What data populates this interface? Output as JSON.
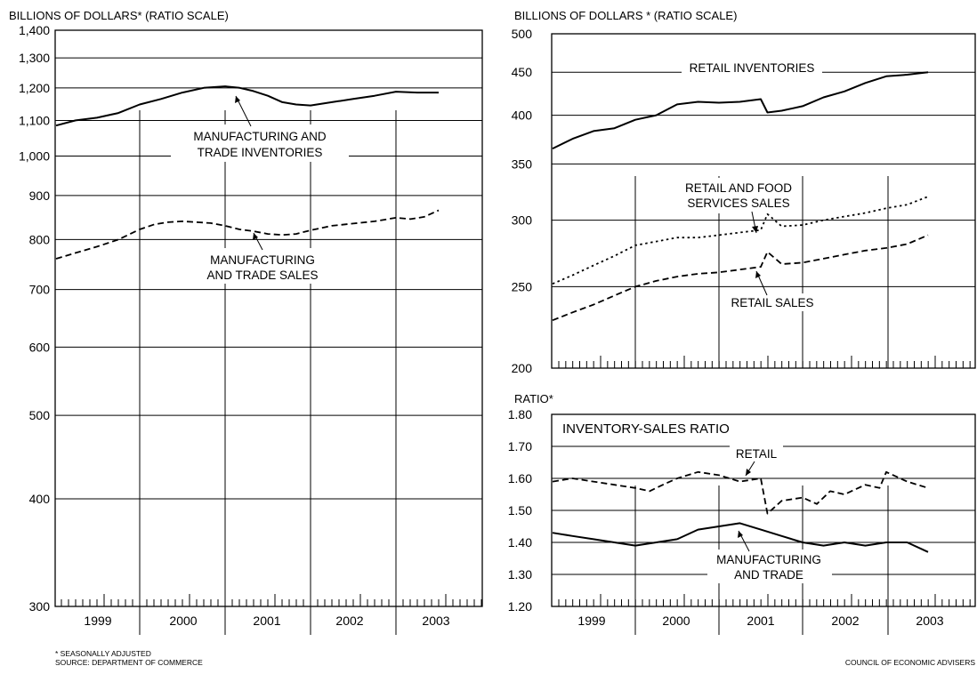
{
  "chart_data": [
    {
      "type": "line",
      "title": "",
      "ylabel": "BILLIONS OF DOLLARS* (RATIO SCALE)",
      "yscale": "log",
      "ylim": [
        300,
        1400
      ],
      "yticks": [
        300,
        400,
        500,
        600,
        700,
        800,
        900,
        1000,
        1100,
        1200,
        1300,
        1400
      ],
      "ytick_labels": [
        "300",
        "400",
        "500",
        "600",
        "700",
        "800",
        "900",
        "1,000",
        "1,100",
        "1,200",
        "1,300",
        "1,400"
      ],
      "x_years": [
        "1999",
        "2000",
        "2001",
        "2002",
        "2003"
      ],
      "xlim": [
        1999.0,
        2004.0
      ],
      "grid": true,
      "annotations": [
        {
          "lines": [
            "MANUFACTURING AND",
            "TRADE INVENTORIES"
          ],
          "series": "MANUFACTURING AND TRADE INVENTORIES"
        },
        {
          "lines": [
            "MANUFACTURING",
            "AND TRADE SALES"
          ],
          "series": "MANUFACTURING AND TRADE SALES"
        }
      ],
      "series": [
        {
          "name": "MANUFACTURING AND TRADE INVENTORIES",
          "style": "solid",
          "x": [
            1999.0,
            1999.25,
            1999.5,
            1999.75,
            2000.0,
            2000.25,
            2000.5,
            2000.75,
            2001.0,
            2001.17,
            2001.33,
            2001.5,
            2001.67,
            2001.83,
            2002.0,
            2002.25,
            2002.5,
            2002.75,
            2003.0,
            2003.25,
            2003.5
          ],
          "y": [
            1085,
            1100,
            1108,
            1122,
            1148,
            1165,
            1185,
            1200,
            1205,
            1200,
            1190,
            1175,
            1155,
            1148,
            1145,
            1155,
            1165,
            1175,
            1188,
            1185,
            1185
          ]
        },
        {
          "name": "MANUFACTURING AND TRADE SALES",
          "style": "dashed",
          "x": [
            1999.0,
            1999.25,
            1999.5,
            1999.75,
            2000.0,
            2000.17,
            2000.33,
            2000.5,
            2000.67,
            2000.83,
            2001.0,
            2001.17,
            2001.33,
            2001.5,
            2001.67,
            2001.83,
            2002.0,
            2002.25,
            2002.5,
            2002.75,
            2003.0,
            2003.17,
            2003.33,
            2003.5
          ],
          "y": [
            760,
            772,
            785,
            800,
            822,
            833,
            838,
            840,
            838,
            836,
            830,
            822,
            818,
            812,
            810,
            812,
            820,
            830,
            835,
            840,
            848,
            845,
            850,
            865
          ]
        }
      ]
    },
    {
      "type": "line",
      "title": "",
      "ylabel": "BILLIONS OF DOLLARS * (RATIO SCALE)",
      "yscale": "log",
      "ylim": [
        200,
        500
      ],
      "yticks": [
        200,
        250,
        300,
        350,
        400,
        450,
        500
      ],
      "ytick_labels": [
        "200",
        "250",
        "300",
        "350",
        "400",
        "450",
        "500"
      ],
      "xlim": [
        1999.0,
        2004.0
      ],
      "grid": true,
      "annotations": [
        {
          "lines": [
            "RETAIL INVENTORIES"
          ],
          "series": "RETAIL INVENTORIES"
        },
        {
          "lines": [
            "RETAIL AND FOOD",
            "SERVICES SALES"
          ],
          "series": "RETAIL AND FOOD SERVICES SALES"
        },
        {
          "lines": [
            "RETAIL SALES"
          ],
          "series": "RETAIL SALES"
        }
      ],
      "series": [
        {
          "name": "RETAIL INVENTORIES",
          "style": "solid",
          "x": [
            1999.0,
            1999.25,
            1999.5,
            1999.75,
            2000.0,
            2000.25,
            2000.5,
            2000.75,
            2001.0,
            2001.25,
            2001.5,
            2001.58,
            2001.75,
            2002.0,
            2002.25,
            2002.5,
            2002.75,
            2003.0,
            2003.25,
            2003.5
          ],
          "y": [
            365,
            375,
            383,
            386,
            395,
            400,
            412,
            415,
            414,
            415,
            418,
            403,
            405,
            410,
            420,
            427,
            437,
            445,
            447,
            450
          ]
        },
        {
          "name": "RETAIL AND FOOD SERVICES SALES",
          "style": "dotted",
          "x": [
            1999.0,
            1999.25,
            1999.5,
            1999.75,
            2000.0,
            2000.25,
            2000.5,
            2000.75,
            2001.0,
            2001.25,
            2001.5,
            2001.58,
            2001.75,
            2002.0,
            2002.25,
            2002.5,
            2002.75,
            2003.0,
            2003.25,
            2003.5
          ],
          "y": [
            252,
            258,
            265,
            272,
            280,
            283,
            286,
            286,
            288,
            290,
            292,
            305,
            295,
            296,
            300,
            303,
            306,
            310,
            313,
            320
          ]
        },
        {
          "name": "RETAIL SALES",
          "style": "dashed",
          "x": [
            1999.0,
            1999.25,
            1999.5,
            1999.75,
            2000.0,
            2000.25,
            2000.5,
            2000.75,
            2001.0,
            2001.25,
            2001.5,
            2001.58,
            2001.75,
            2002.0,
            2002.25,
            2002.5,
            2002.75,
            2003.0,
            2003.25,
            2003.5
          ],
          "y": [
            228,
            233,
            238,
            244,
            250,
            254,
            257,
            259,
            260,
            262,
            264,
            275,
            266,
            267,
            270,
            273,
            276,
            278,
            281,
            288
          ]
        }
      ]
    },
    {
      "type": "line",
      "title": "INVENTORY-SALES RATIO",
      "ylabel": "RATIO*",
      "yscale": "linear",
      "ylim": [
        1.2,
        1.8
      ],
      "yticks": [
        1.2,
        1.3,
        1.4,
        1.5,
        1.6,
        1.7,
        1.8
      ],
      "ytick_labels": [
        "1.20",
        "1.30",
        "1.40",
        "1.50",
        "1.60",
        "1.70",
        "1.80"
      ],
      "x_years": [
        "1999",
        "2000",
        "2001",
        "2002",
        "2003"
      ],
      "xlim": [
        1999.0,
        2004.0
      ],
      "grid": true,
      "annotations": [
        {
          "lines": [
            "RETAIL"
          ],
          "series": "RETAIL"
        },
        {
          "lines": [
            "MANUFACTURING",
            "AND TRADE"
          ],
          "series": "MANUFACTURING AND TRADE"
        }
      ],
      "series": [
        {
          "name": "RETAIL",
          "style": "dashed",
          "x": [
            1999.0,
            1999.25,
            1999.5,
            1999.75,
            2000.0,
            2000.17,
            2000.33,
            2000.5,
            2000.75,
            2001.0,
            2001.25,
            2001.5,
            2001.58,
            2001.75,
            2002.0,
            2002.17,
            2002.33,
            2002.5,
            2002.75,
            2002.92,
            2003.0,
            2003.25,
            2003.5
          ],
          "y": [
            1.59,
            1.6,
            1.59,
            1.58,
            1.57,
            1.56,
            1.58,
            1.6,
            1.62,
            1.61,
            1.59,
            1.6,
            1.49,
            1.53,
            1.54,
            1.52,
            1.56,
            1.55,
            1.58,
            1.57,
            1.62,
            1.59,
            1.57
          ]
        },
        {
          "name": "MANUFACTURING AND TRADE",
          "style": "solid",
          "x": [
            1999.0,
            1999.25,
            1999.5,
            1999.75,
            2000.0,
            2000.25,
            2000.5,
            2000.75,
            2001.0,
            2001.25,
            2001.5,
            2001.75,
            2002.0,
            2002.25,
            2002.5,
            2002.75,
            2003.0,
            2003.25,
            2003.5
          ],
          "y": [
            1.43,
            1.42,
            1.41,
            1.4,
            1.39,
            1.4,
            1.41,
            1.44,
            1.45,
            1.46,
            1.44,
            1.42,
            1.4,
            1.39,
            1.4,
            1.39,
            1.4,
            1.4,
            1.37
          ]
        }
      ]
    }
  ],
  "footer": {
    "note": "* SEASONALLY ADJUSTED",
    "source": "SOURCE: DEPARTMENT OF COMMERCE",
    "credit": "COUNCIL OF ECONOMIC ADVISERS"
  }
}
